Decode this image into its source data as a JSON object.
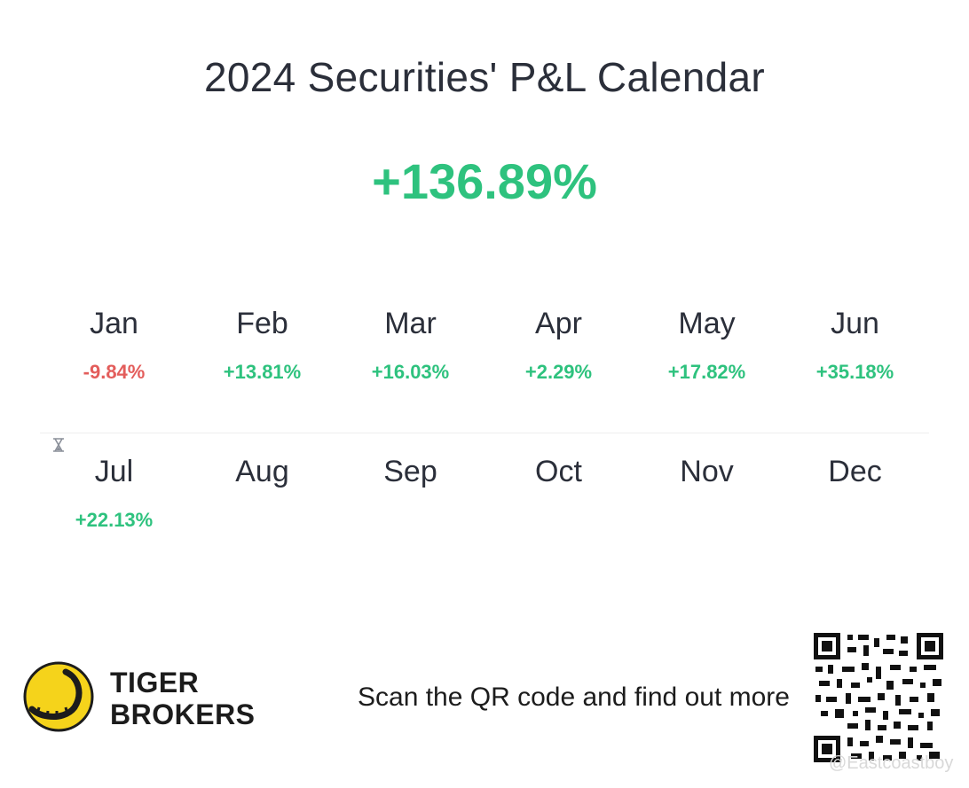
{
  "title": "2024 Securities' P&L Calendar",
  "total": "+136.89%",
  "months": [
    {
      "label": "Jan",
      "value": "-9.84%",
      "sign": "neg"
    },
    {
      "label": "Feb",
      "value": "+13.81%",
      "sign": "pos"
    },
    {
      "label": "Mar",
      "value": "+16.03%",
      "sign": "pos"
    },
    {
      "label": "Apr",
      "value": "+2.29%",
      "sign": "pos"
    },
    {
      "label": "May",
      "value": "+17.82%",
      "sign": "pos"
    },
    {
      "label": "Jun",
      "value": "+35.18%",
      "sign": "pos"
    },
    {
      "label": "Jul",
      "value": "+22.13%",
      "sign": "pos"
    },
    {
      "label": "Aug",
      "value": "",
      "sign": ""
    },
    {
      "label": "Sep",
      "value": "",
      "sign": ""
    },
    {
      "label": "Oct",
      "value": "",
      "sign": ""
    },
    {
      "label": "Nov",
      "value": "",
      "sign": ""
    },
    {
      "label": "Dec",
      "value": "",
      "sign": ""
    }
  ],
  "footer": {
    "brand_line1": "TIGER",
    "brand_line2": "BROKERS",
    "scan_text": "Scan the QR code and find out more",
    "watermark": "@Eastcoastboy"
  },
  "icons": {
    "in_progress": "hourglass-icon",
    "logo": "tiger-logo-icon",
    "qr": "qr-code-icon"
  },
  "colors": {
    "positive": "#2ec27e",
    "negative": "#e35d5b",
    "logo_yellow": "#f5d31b"
  }
}
